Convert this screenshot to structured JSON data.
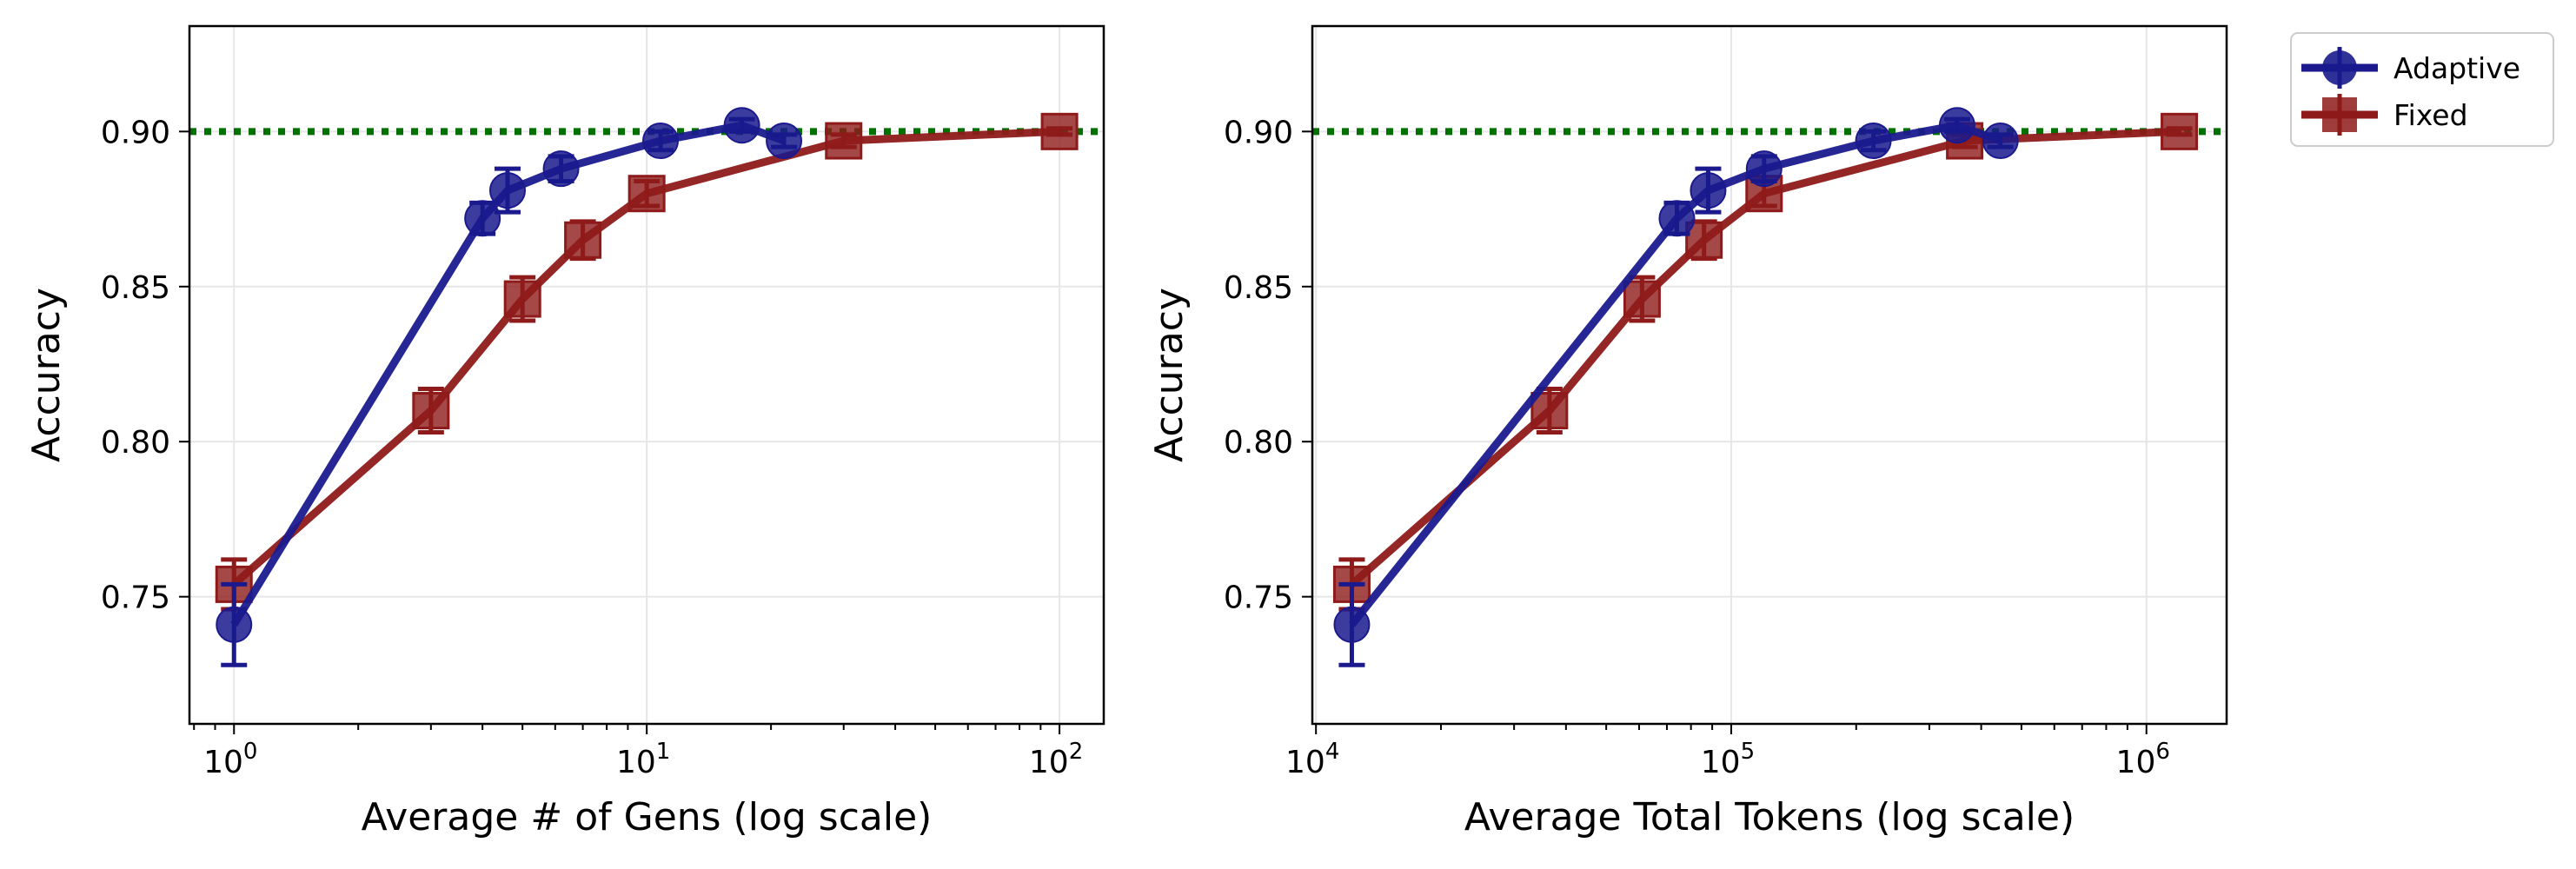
{
  "legend": {
    "entries": [
      {
        "label": "Adaptive",
        "color": "#1a1a8e",
        "marker": "circle"
      },
      {
        "label": "Fixed",
        "color": "#8e1a1a",
        "marker": "square"
      }
    ]
  },
  "chart_data": [
    {
      "type": "line",
      "xscale": "log",
      "title": "",
      "xlabel": "Average # of Gens (log scale)",
      "ylabel": "Accuracy",
      "xlim": [
        0.78,
        128
      ],
      "ylim": [
        0.709,
        0.934
      ],
      "grid": true,
      "reference_line": {
        "y": 0.9,
        "color": "#007000",
        "style": "dotted"
      },
      "xticks": [
        {
          "value": 1,
          "base": "10",
          "exp": "0"
        },
        {
          "value": 10,
          "base": "10",
          "exp": "1"
        },
        {
          "value": 100,
          "base": "10",
          "exp": "2"
        }
      ],
      "yticks": [
        {
          "value": 0.75,
          "label": "0.75"
        },
        {
          "value": 0.8,
          "label": "0.80"
        },
        {
          "value": 0.85,
          "label": "0.85"
        },
        {
          "value": 0.9,
          "label": "0.90"
        }
      ],
      "series": [
        {
          "name": "Adaptive",
          "color": "#1a1a8e",
          "marker": "circle",
          "x": [
            1.0,
            4.0,
            4.6,
            6.2,
            10.8,
            17.0,
            21.5
          ],
          "y": [
            0.741,
            0.872,
            0.881,
            0.888,
            0.897,
            0.902,
            0.897
          ],
          "err": [
            0.013,
            0.005,
            0.007,
            0.004,
            0.003,
            0.002,
            0.002
          ]
        },
        {
          "name": "Fixed",
          "color": "#8e1a1a",
          "marker": "square",
          "x": [
            1.0,
            3.0,
            5.0,
            7.0,
            10.0,
            30.0,
            100.0
          ],
          "y": [
            0.754,
            0.81,
            0.846,
            0.865,
            0.88,
            0.897,
            0.9
          ],
          "err": [
            0.008,
            0.007,
            0.007,
            0.006,
            0.004,
            0.002,
            0.001
          ]
        }
      ]
    },
    {
      "type": "line",
      "xscale": "log",
      "title": "",
      "xlabel": "Average Total Tokens (log scale)",
      "ylabel": "Accuracy",
      "xlim": [
        9800,
        1560000
      ],
      "ylim": [
        0.709,
        0.934
      ],
      "grid": true,
      "reference_line": {
        "y": 0.9,
        "color": "#007000",
        "style": "dotted"
      },
      "xticks": [
        {
          "value": 10000,
          "base": "10",
          "exp": "4"
        },
        {
          "value": 100000,
          "base": "10",
          "exp": "5"
        },
        {
          "value": 1000000,
          "base": "10",
          "exp": "6"
        }
      ],
      "yticks": [
        {
          "value": 0.75,
          "label": "0.75"
        },
        {
          "value": 0.8,
          "label": "0.80"
        },
        {
          "value": 0.85,
          "label": "0.85"
        },
        {
          "value": 0.9,
          "label": "0.90"
        }
      ],
      "series": [
        {
          "name": "Adaptive",
          "color": "#1a1a8e",
          "marker": "circle",
          "x": [
            12200,
            74000,
            88000,
            120000,
            220000,
            350000,
            445000
          ],
          "y": [
            0.741,
            0.872,
            0.881,
            0.888,
            0.897,
            0.902,
            0.897
          ],
          "err": [
            0.013,
            0.005,
            0.007,
            0.004,
            0.003,
            0.002,
            0.002
          ]
        },
        {
          "name": "Fixed",
          "color": "#8e1a1a",
          "marker": "square",
          "x": [
            12200,
            36500,
            61000,
            86000,
            120000,
            365000,
            1200000
          ],
          "y": [
            0.754,
            0.81,
            0.846,
            0.865,
            0.88,
            0.897,
            0.9
          ],
          "err": [
            0.008,
            0.007,
            0.007,
            0.006,
            0.004,
            0.002,
            0.001
          ]
        }
      ]
    }
  ]
}
